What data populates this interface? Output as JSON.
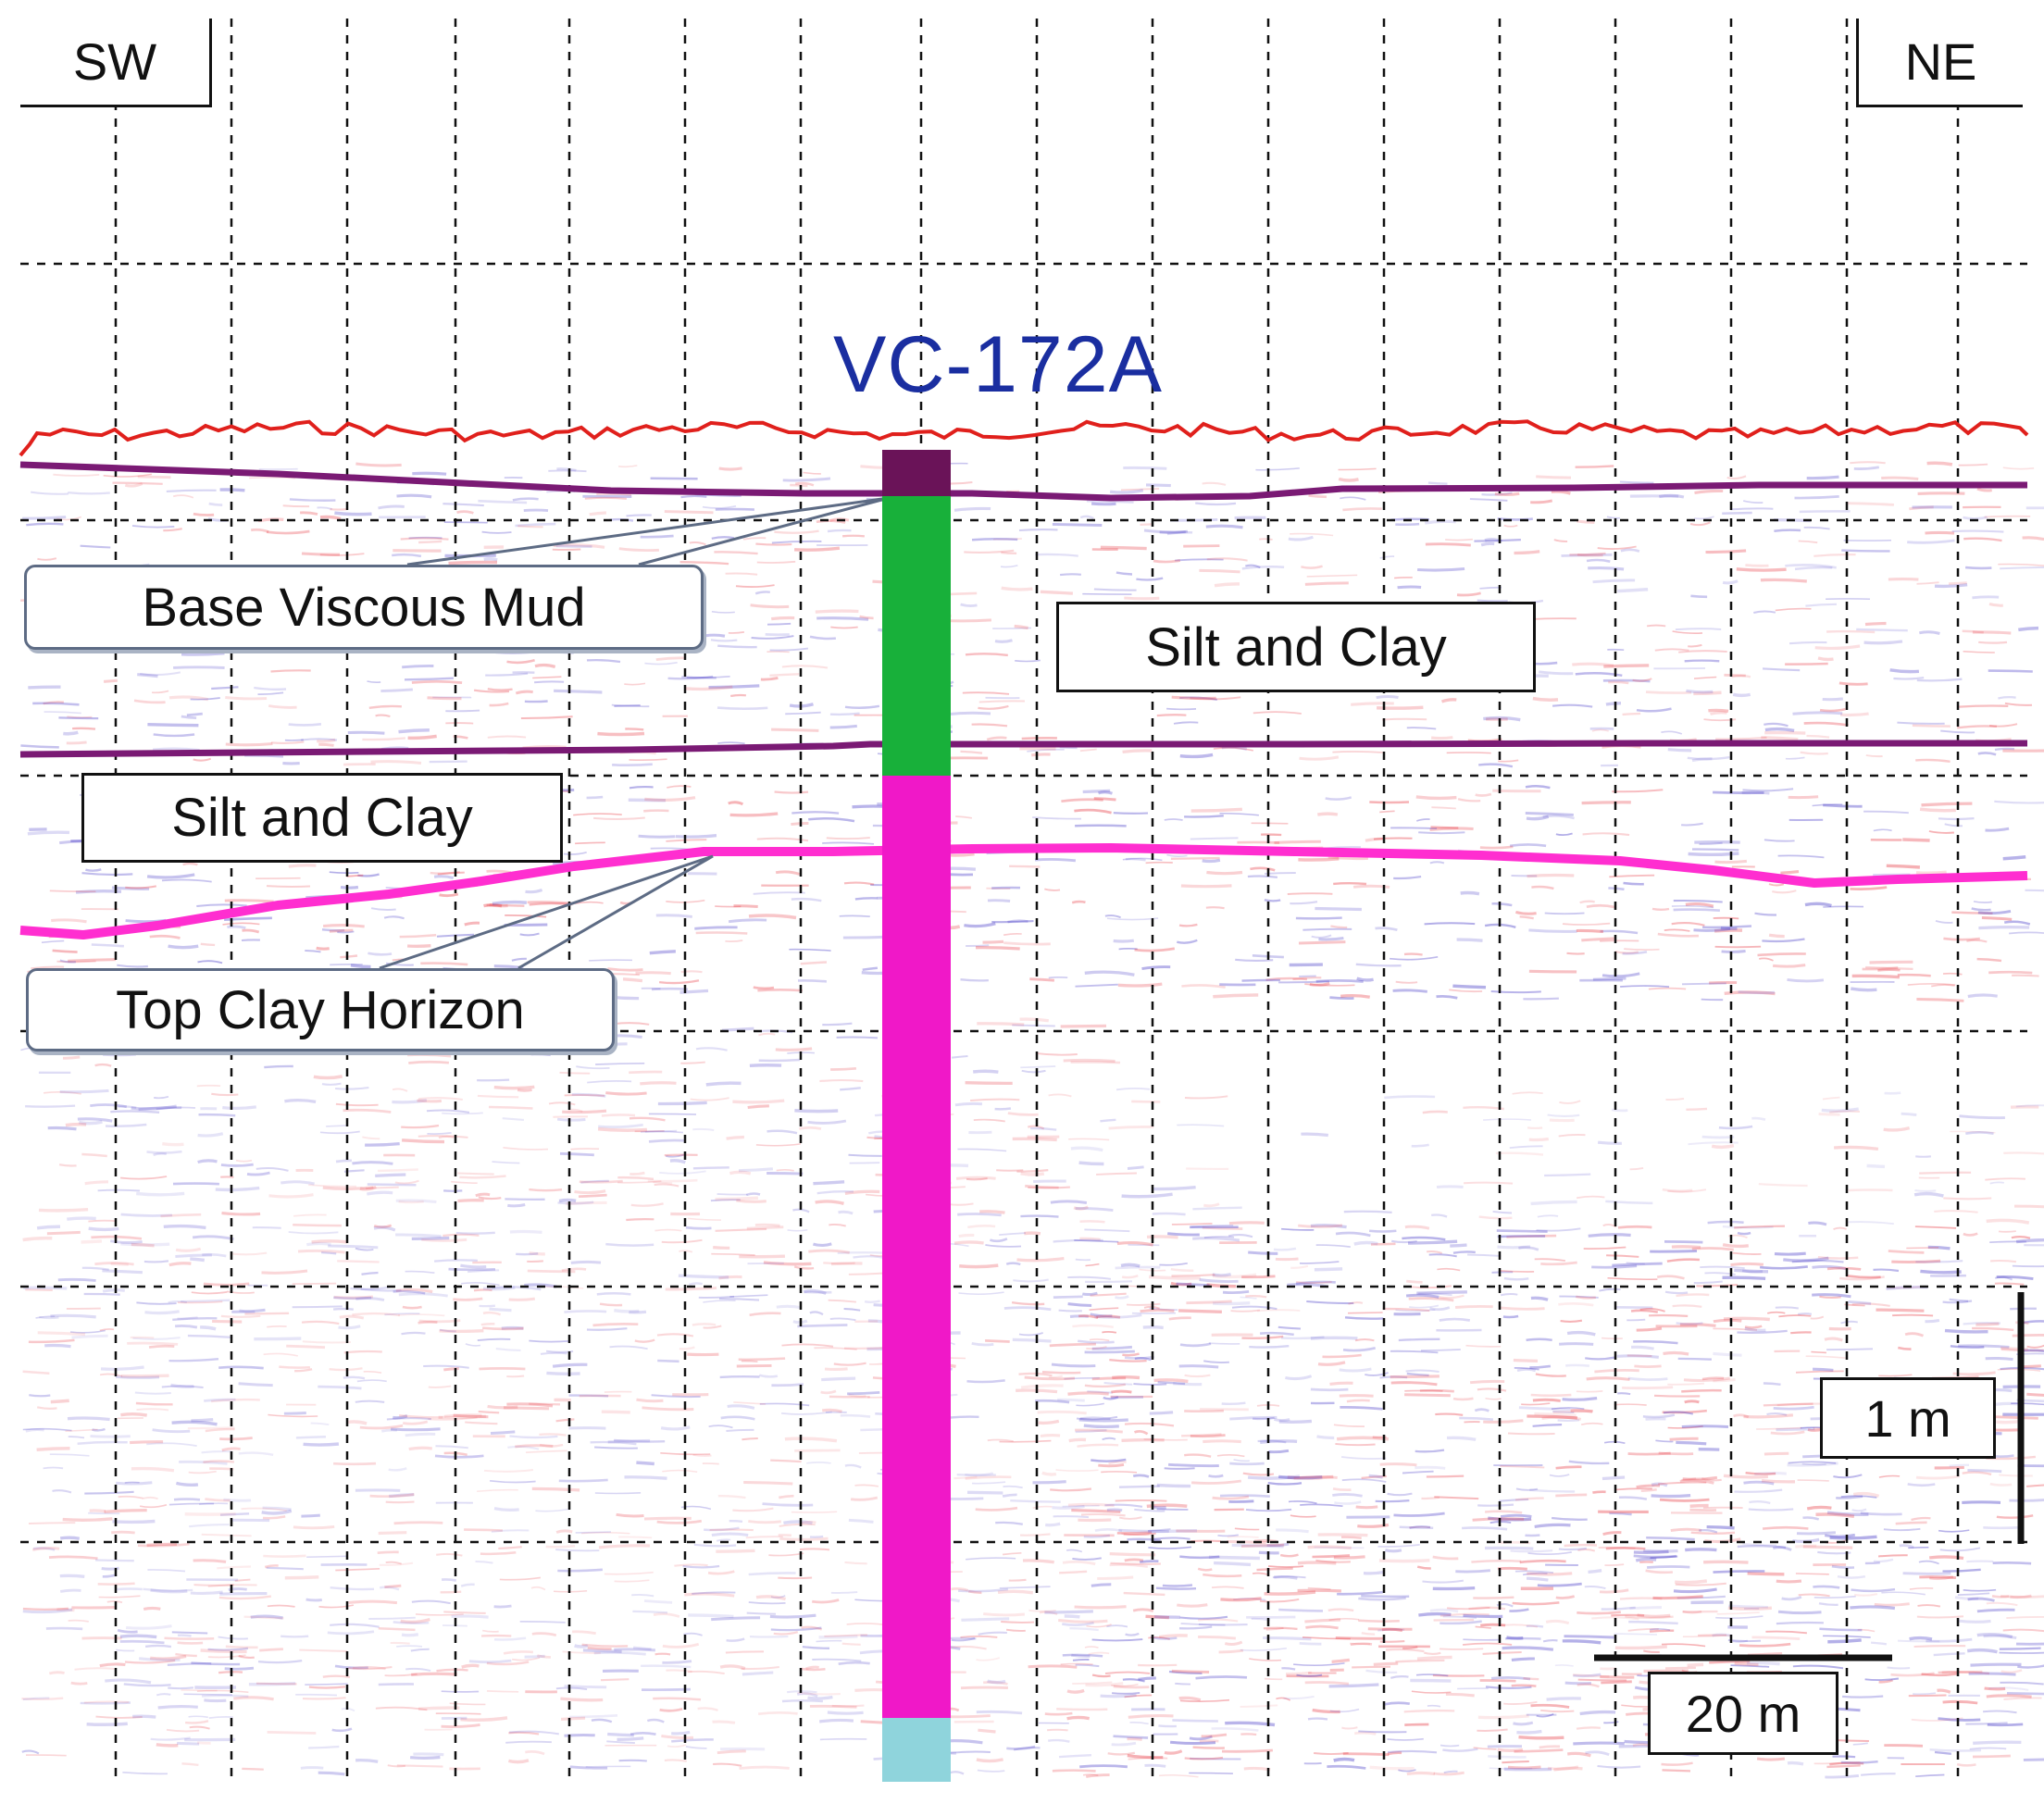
{
  "directions": {
    "left": "SW",
    "right": "NE"
  },
  "core": {
    "id": "VC-172A"
  },
  "labels": {
    "base_viscous_mud": "Base Viscous Mud",
    "silt_clay_upper": "Silt and Clay",
    "silt_clay_lower": "Silt and Clay",
    "top_clay_horizon": "Top Clay Horizon"
  },
  "scale": {
    "vertical": "1 m",
    "horizontal": "20 m"
  },
  "colors": {
    "seabed": "#e0201c",
    "horizon_purple": "#7a1a74",
    "top_clay_horizon": "#ff2ed0",
    "core_top_unit": "#6a1358",
    "core_silt_clay_unit": "#18b03a",
    "core_clay_unit": "#f018c8",
    "core_base_unit": "#8fd4dc",
    "core_title": "#1a2ea0",
    "reflector_red": "#e8434c",
    "reflector_blue": "#4a3ec8"
  }
}
